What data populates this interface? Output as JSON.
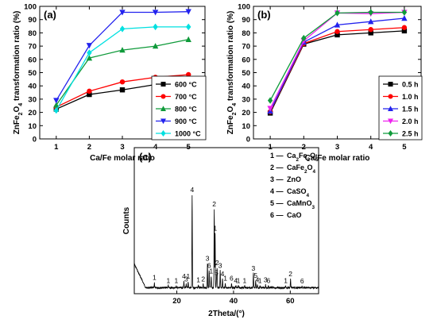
{
  "chart_data": [
    {
      "type": "line",
      "panel_label": "(a)",
      "xlabel": "Ca/Fe molar ratio",
      "ylabel": "ZnFe2O4 transformation ratio (%)",
      "ylabel_parts": [
        "ZnFe",
        "2",
        "O",
        "4",
        " transformation ratio (%)"
      ],
      "x": [
        1,
        2,
        3,
        4,
        5
      ],
      "xlim": [
        0.5,
        5.5
      ],
      "ylim": [
        0,
        100
      ],
      "xticks": [
        "1",
        "2",
        "3",
        "4",
        "5"
      ],
      "yticks": [
        "0",
        "10",
        "20",
        "30",
        "40",
        "50",
        "60",
        "70",
        "80",
        "90",
        "100"
      ],
      "legend_position": "bottom-right",
      "series": [
        {
          "name": "600 °C",
          "color": "#000000",
          "marker": "square",
          "values": [
            22.5,
            33.5,
            37,
            41,
            42
          ]
        },
        {
          "name": "700 °C",
          "color": "#ff0000",
          "marker": "circle",
          "values": [
            24,
            36,
            43,
            46.5,
            48.5
          ]
        },
        {
          "name": "800 °C",
          "color": "#0f9a3a",
          "marker": "triangle-up",
          "values": [
            25.5,
            61,
            67,
            70,
            75
          ]
        },
        {
          "name": "900 °C",
          "color": "#2222ee",
          "marker": "triangle-down",
          "values": [
            29,
            70.5,
            95.5,
            95.5,
            96
          ]
        },
        {
          "name": "1000 °C",
          "color": "#00e0e0",
          "marker": "diamond",
          "values": [
            21.5,
            65,
            83,
            84.5,
            84.5
          ]
        }
      ]
    },
    {
      "type": "line",
      "panel_label": "(b)",
      "xlabel": "Ca/Fe molar ratio",
      "ylabel": "ZnFe2O4 transformation ratio (%)",
      "ylabel_parts": [
        "ZnFe",
        "2",
        "O",
        "4",
        " transformation ratio (%)"
      ],
      "x": [
        1,
        2,
        3,
        4,
        5
      ],
      "xlim": [
        0.5,
        5.5
      ],
      "ylim": [
        0,
        100
      ],
      "xticks": [
        "1",
        "2",
        "3",
        "4",
        "5"
      ],
      "yticks": [
        "0",
        "10",
        "20",
        "30",
        "40",
        "50",
        "60",
        "70",
        "80",
        "90",
        "100"
      ],
      "legend_position": "bottom-right",
      "series": [
        {
          "name": "0.5 h",
          "color": "#000000",
          "marker": "square",
          "values": [
            19.5,
            71.5,
            78.5,
            80,
            81.5
          ]
        },
        {
          "name": "1.0 h",
          "color": "#ff0000",
          "marker": "circle",
          "values": [
            20.5,
            72,
            81,
            82.5,
            84
          ]
        },
        {
          "name": "1.5 h",
          "color": "#2222ee",
          "marker": "triangle-up",
          "values": [
            21,
            73,
            86,
            88.5,
            91
          ]
        },
        {
          "name": "2.0 h",
          "color": "#ee22ee",
          "marker": "triangle-down",
          "values": [
            23,
            74,
            95,
            94.5,
            95.5
          ]
        },
        {
          "name": "2.5 h",
          "color": "#0f9a3a",
          "marker": "diamond",
          "values": [
            29,
            76,
            95,
            95.5,
            95.5
          ]
        }
      ]
    },
    {
      "type": "line",
      "panel_label": "(c)",
      "xlabel": "2Theta/(°)",
      "ylabel": "Counts",
      "xlim": [
        5,
        70
      ],
      "xticks": [
        "20",
        "40",
        "60"
      ],
      "legend": [
        {
          "num": "1",
          "parts": [
            "Ca",
            "2",
            "Fe",
            "2",
            "O",
            "5"
          ]
        },
        {
          "num": "2",
          "parts": [
            "CaFe",
            "2",
            "O",
            "4"
          ]
        },
        {
          "num": "3",
          "parts": [
            "ZnO"
          ]
        },
        {
          "num": "4",
          "parts": [
            "CaSO",
            "4"
          ]
        },
        {
          "num": "5",
          "parts": [
            "CaMnO",
            "3"
          ]
        },
        {
          "num": "6",
          "parts": [
            "CaO"
          ]
        }
      ],
      "peak_labels": [
        {
          "text": "1",
          "x": 12.1
        },
        {
          "text": "1",
          "x": 17.0
        },
        {
          "text": "1",
          "x": 19.8
        },
        {
          "text": "4",
          "x": 22.5
        },
        {
          "text": "3",
          "x": 23.3
        },
        {
          "text": "1",
          "x": 24.0
        },
        {
          "text": "4",
          "x": 25.4
        },
        {
          "text": "1",
          "x": 27.6
        },
        {
          "text": "2",
          "x": 29.3
        },
        {
          "text": "3",
          "x": 30.8
        },
        {
          "text": "6",
          "x": 31.4
        },
        {
          "text": "1",
          "x": 32.1
        },
        {
          "text": "2",
          "x": 33.2
        },
        {
          "text": "1",
          "x": 33.5
        },
        {
          "text": "2",
          "x": 34.2
        },
        {
          "text": "5",
          "x": 34.0
        },
        {
          "text": "3",
          "x": 35.3
        },
        {
          "text": "4",
          "x": 36.1
        },
        {
          "text": "1",
          "x": 37.1
        },
        {
          "text": "6",
          "x": 39.3
        },
        {
          "text": "4",
          "x": 40.8
        },
        {
          "text": "1",
          "x": 41.7
        },
        {
          "text": "1",
          "x": 43.9
        },
        {
          "text": "3",
          "x": 47.0
        },
        {
          "text": "5",
          "x": 47.8
        },
        {
          "text": "4",
          "x": 48.4
        },
        {
          "text": "1",
          "x": 49.3
        },
        {
          "text": "3",
          "x": 51.3
        },
        {
          "text": "6",
          "x": 52.3
        },
        {
          "text": "1",
          "x": 58.4
        },
        {
          "text": "2",
          "x": 60.1
        },
        {
          "text": "6",
          "x": 64.2
        }
      ],
      "peaks": [
        {
          "x": 12.1,
          "h": 3.5
        },
        {
          "x": 17.0,
          "h": 1.5
        },
        {
          "x": 19.8,
          "h": 1.5
        },
        {
          "x": 22.5,
          "h": 4.5
        },
        {
          "x": 23.3,
          "h": 2.5
        },
        {
          "x": 24.0,
          "h": 4.5
        },
        {
          "x": 25.4,
          "h": 65
        },
        {
          "x": 27.6,
          "h": 2
        },
        {
          "x": 29.3,
          "h": 2.5
        },
        {
          "x": 30.8,
          "h": 17
        },
        {
          "x": 31.4,
          "h": 12
        },
        {
          "x": 32.1,
          "h": 8
        },
        {
          "x": 33.2,
          "h": 55
        },
        {
          "x": 33.5,
          "h": 38
        },
        {
          "x": 34.0,
          "h": 7
        },
        {
          "x": 34.2,
          "h": 14
        },
        {
          "x": 35.3,
          "h": 12
        },
        {
          "x": 36.1,
          "h": 6
        },
        {
          "x": 37.1,
          "h": 3
        },
        {
          "x": 39.3,
          "h": 3
        },
        {
          "x": 40.8,
          "h": 1.5
        },
        {
          "x": 41.7,
          "h": 1.5
        },
        {
          "x": 43.9,
          "h": 1.5
        },
        {
          "x": 47.0,
          "h": 10
        },
        {
          "x": 47.8,
          "h": 5
        },
        {
          "x": 48.4,
          "h": 2
        },
        {
          "x": 49.3,
          "h": 1.5
        },
        {
          "x": 51.3,
          "h": 2
        },
        {
          "x": 52.3,
          "h": 1.5
        },
        {
          "x": 58.4,
          "h": 1.5
        },
        {
          "x": 60.1,
          "h": 6
        },
        {
          "x": 64.2,
          "h": 1
        }
      ]
    }
  ]
}
